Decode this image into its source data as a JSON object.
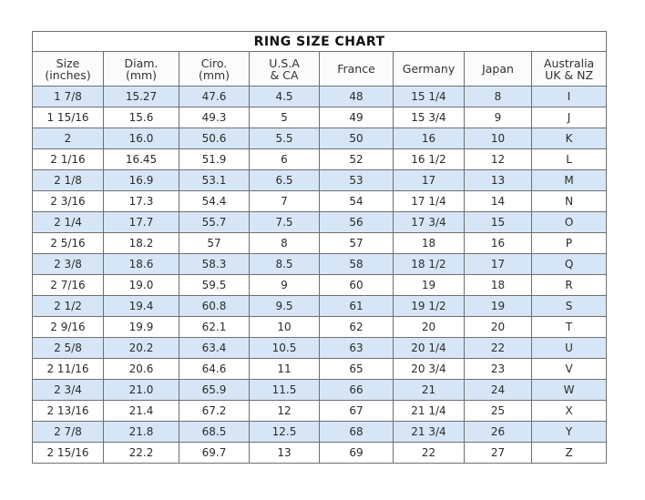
{
  "title": "RING SIZE  CHART",
  "headers": [
    [
      "Size",
      "(inches)"
    ],
    [
      "Diam.",
      "(mm)"
    ],
    [
      "Ciro.",
      "(mm)"
    ],
    [
      "U.S.A",
      "& CA"
    ],
    [
      "France",
      ""
    ],
    [
      "Germany",
      ""
    ],
    [
      "Japan",
      ""
    ],
    [
      "Australia",
      "UK & NZ"
    ]
  ],
  "row_highlight_color": "#d6e6f6",
  "rows": [
    [
      "1 7/8",
      "15.27",
      "47.6",
      "4.5",
      "48",
      "15 1/4",
      "8",
      "I"
    ],
    [
      "1 15/16",
      "15.6",
      "49.3",
      "5",
      "49",
      "15 3/4",
      "9",
      "J"
    ],
    [
      "2",
      "16.0",
      "50.6",
      "5.5",
      "50",
      "16",
      "10",
      "K"
    ],
    [
      "2 1/16",
      "16.45",
      "51.9",
      "6",
      "52",
      "16 1/2",
      "12",
      "L"
    ],
    [
      "2 1/8",
      "16.9",
      "53.1",
      "6.5",
      "53",
      "17",
      "13",
      "M"
    ],
    [
      "2 3/16",
      "17.3",
      "54.4",
      "7",
      "54",
      "17 1/4",
      "14",
      "N"
    ],
    [
      "2 1/4",
      "17.7",
      "55.7",
      "7.5",
      "56",
      "17 3/4",
      "15",
      "O"
    ],
    [
      "2 5/16",
      "18.2",
      "57",
      "8",
      "57",
      "18",
      "16",
      "P"
    ],
    [
      "2 3/8",
      "18.6",
      "58.3",
      "8.5",
      "58",
      "18 1/2",
      "17",
      "Q"
    ],
    [
      "2 7/16",
      "19.0",
      "59.5",
      "9",
      "60",
      "19",
      "18",
      "R"
    ],
    [
      "2 1/2",
      "19.4",
      "60.8",
      "9.5",
      "61",
      "19 1/2",
      "19",
      "S"
    ],
    [
      "2 9/16",
      "19.9",
      "62.1",
      "10",
      "62",
      "20",
      "20",
      "T"
    ],
    [
      "2 5/8",
      "20.2",
      "63.4",
      "10.5",
      "63",
      "20 1/4",
      "22",
      "U"
    ],
    [
      "2 11/16",
      "20.6",
      "64.6",
      "11",
      "65",
      "20 3/4",
      "23",
      "V"
    ],
    [
      "2 3/4",
      "21.0",
      "65.9",
      "11.5",
      "66",
      "21",
      "24",
      "W"
    ],
    [
      "2 13/16",
      "21.4",
      "67.2",
      "12",
      "67",
      "21 1/4",
      "25",
      "X"
    ],
    [
      "2 7/8",
      "21.8",
      "68.5",
      "12.5",
      "68",
      "21 3/4",
      "26",
      "Y"
    ],
    [
      "2 15/16",
      "22.2",
      "69.7",
      "13",
      "69",
      "22",
      "27",
      "Z"
    ]
  ]
}
